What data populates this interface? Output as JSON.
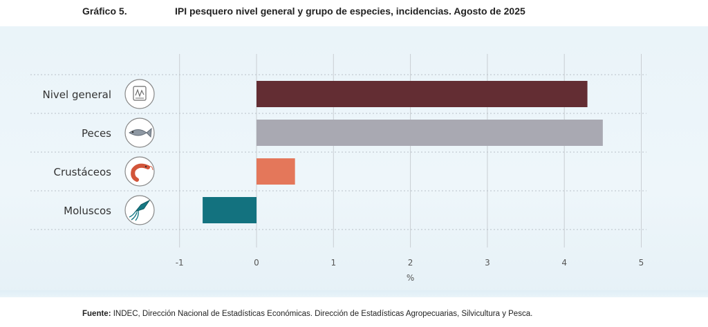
{
  "header": {
    "figure_number": "Gráfico 5.",
    "title": "IPI pesquero nivel general y grupo de especies, incidencias. Agosto de 2025"
  },
  "source": {
    "label": "Fuente:",
    "text": " INDEC, Dirección Nacional de Estadísticas Económicas. Dirección de Estadísticas Agropecuarias, Silvicultura y Pesca."
  },
  "chart_data": {
    "type": "bar",
    "orientation": "horizontal",
    "categories": [
      "Nivel general",
      "Peces",
      "Crustáceos",
      "Moluscos"
    ],
    "icons": [
      "gauge-icon",
      "fish-icon",
      "shrimp-icon",
      "squid-icon"
    ],
    "values": [
      4.3,
      4.5,
      0.5,
      -0.7
    ],
    "colors": [
      "#632d33",
      "#a9a9b2",
      "#e4775a",
      "#13727f"
    ],
    "xlabel": "%",
    "xlim": [
      -1,
      5
    ],
    "xticks": [
      -1,
      0,
      1,
      2,
      3,
      4,
      5
    ],
    "xtick_labels": [
      "-1",
      "0",
      "1",
      "2",
      "3",
      "4",
      "5"
    ],
    "grid": true
  }
}
